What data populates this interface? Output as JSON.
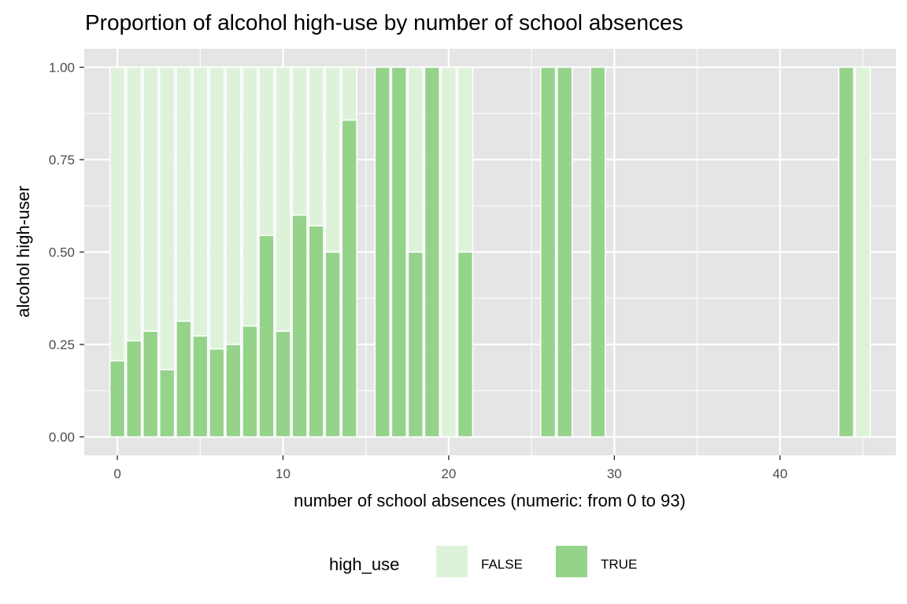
{
  "chart_data": {
    "type": "bar",
    "stacked": true,
    "position": "fill",
    "title": "Proportion of alcohol high-use by number of school absences",
    "xlabel": "number of school absences (numeric: from 0 to 93)",
    "ylabel": "alcohol high-user",
    "xlim": [
      -2,
      47
    ],
    "ylim": [
      -0.05,
      1.05
    ],
    "x_ticks": [
      0,
      10,
      20,
      30,
      40
    ],
    "x_tick_labels": [
      "0",
      "10",
      "20",
      "30",
      "40"
    ],
    "y_ticks": [
      0,
      0.25,
      0.5,
      0.75,
      1
    ],
    "y_tick_labels": [
      "0.00",
      "0.25",
      "0.50",
      "0.75",
      "1.00"
    ],
    "grid": true,
    "legend": {
      "title": "high_use",
      "position": "bottom",
      "entries": [
        "FALSE",
        "TRUE"
      ]
    },
    "colors": {
      "FALSE": "#def2da",
      "TRUE": "#95d38a",
      "panel": "#e5e5e5",
      "grid": "#ffffff"
    },
    "x": [
      0,
      1,
      2,
      3,
      4,
      5,
      6,
      7,
      8,
      9,
      10,
      11,
      12,
      13,
      14,
      16,
      17,
      18,
      19,
      20,
      21,
      26,
      27,
      29,
      44,
      45
    ],
    "true_proportion": [
      0.206,
      0.26,
      0.286,
      0.182,
      0.313,
      0.273,
      0.238,
      0.25,
      0.3,
      0.545,
      0.286,
      0.6,
      0.571,
      0.5,
      0.857,
      1,
      1,
      0.5,
      1,
      0,
      0.5,
      1,
      1,
      1,
      1,
      0
    ]
  }
}
